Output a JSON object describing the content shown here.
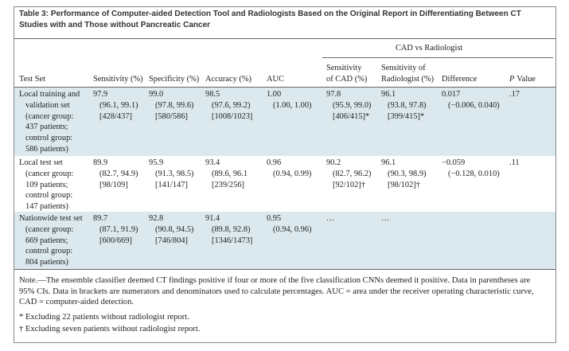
{
  "title": "Table 3: Performance of Computer-aided Detection Tool and Radiologists Based on the Original Report in Differentiating Between CT Studies with and Those without Pancreatic Cancer",
  "table": {
    "group_header": "CAD vs Radiologist",
    "headers": [
      [
        "Test Set"
      ],
      [
        "Sensitivity (%)"
      ],
      [
        "Specificity (%)"
      ],
      [
        "Accuracy (%)"
      ],
      [
        "AUC"
      ],
      [
        "Sensitivity",
        "of CAD (%)"
      ],
      [
        "Sensitivity of",
        "Radiologist (%)"
      ],
      [
        "Difference"
      ],
      [
        "P",
        "Value"
      ]
    ],
    "rows": [
      [
        [
          "Local training and",
          "validation set",
          "(cancer group:",
          "437 patients;",
          "control group:",
          "586 patients)"
        ],
        [
          "97.9",
          "(96.1, 99.1)",
          "[428/437]"
        ],
        [
          "99.0",
          "(97.8, 99.6)",
          "[580/586]"
        ],
        [
          "98.5",
          "(97.6, 99.2)",
          "[1008/1023]"
        ],
        [
          "1.00",
          "(1.00, 1.00)"
        ],
        [
          "97.8",
          "(95.9, 99.0)",
          "[406/415]*"
        ],
        [
          "96.1",
          "(93.8, 97.8)",
          "[399/415]*"
        ],
        [
          "0.017",
          "(−0.006, 0.040)"
        ],
        [
          ".17"
        ]
      ],
      [
        [
          "Local test set",
          "(cancer group:",
          "109 patients;",
          "control group:",
          "147 patients)"
        ],
        [
          "89.9",
          "(82.7, 94.9)",
          "[98/109]"
        ],
        [
          "95.9",
          "(91.3, 98.5)",
          "[141/147]"
        ],
        [
          "93.4",
          "(89.6, 96.1",
          "[239/256]"
        ],
        [
          "0.96",
          "(0.94, 0.99)"
        ],
        [
          "90.2",
          "(82.7, 96.2)",
          "[92/102]†"
        ],
        [
          "96.1",
          "(90.3, 98.9)",
          "[98/102]†"
        ],
        [
          "−0.059",
          "(−0.128, 0.010)"
        ],
        [
          ".11"
        ]
      ],
      [
        [
          "Nationwide test set",
          "(cancer group:",
          "669 patients;",
          "control group:",
          "804 patients)"
        ],
        [
          "89.7",
          "(87.1, 91.9)",
          "[600/669]"
        ],
        [
          "92.8",
          "(90.8, 94.5)",
          "[746/804]"
        ],
        [
          "91.4",
          "(89.8, 92.8)",
          "[1346/1473]"
        ],
        [
          "0.95",
          "(0.94, 0.96)"
        ],
        [
          "…"
        ],
        [
          "…"
        ],
        [],
        []
      ]
    ]
  },
  "notes": [
    "Note.—The ensemble classifier deemed CT findings positive if four or more of the five classification CNNs deemed it positive. Data in parentheses are 95% CIs. Data in brackets are numerators and denominators used to calculate percentages. AUC = area under the receiver operating characteristic curve, CAD = computer-aided detection.",
    "* Excluding 22 patients without radiologist report.",
    "† Excluding seven patients without radiologist report."
  ]
}
